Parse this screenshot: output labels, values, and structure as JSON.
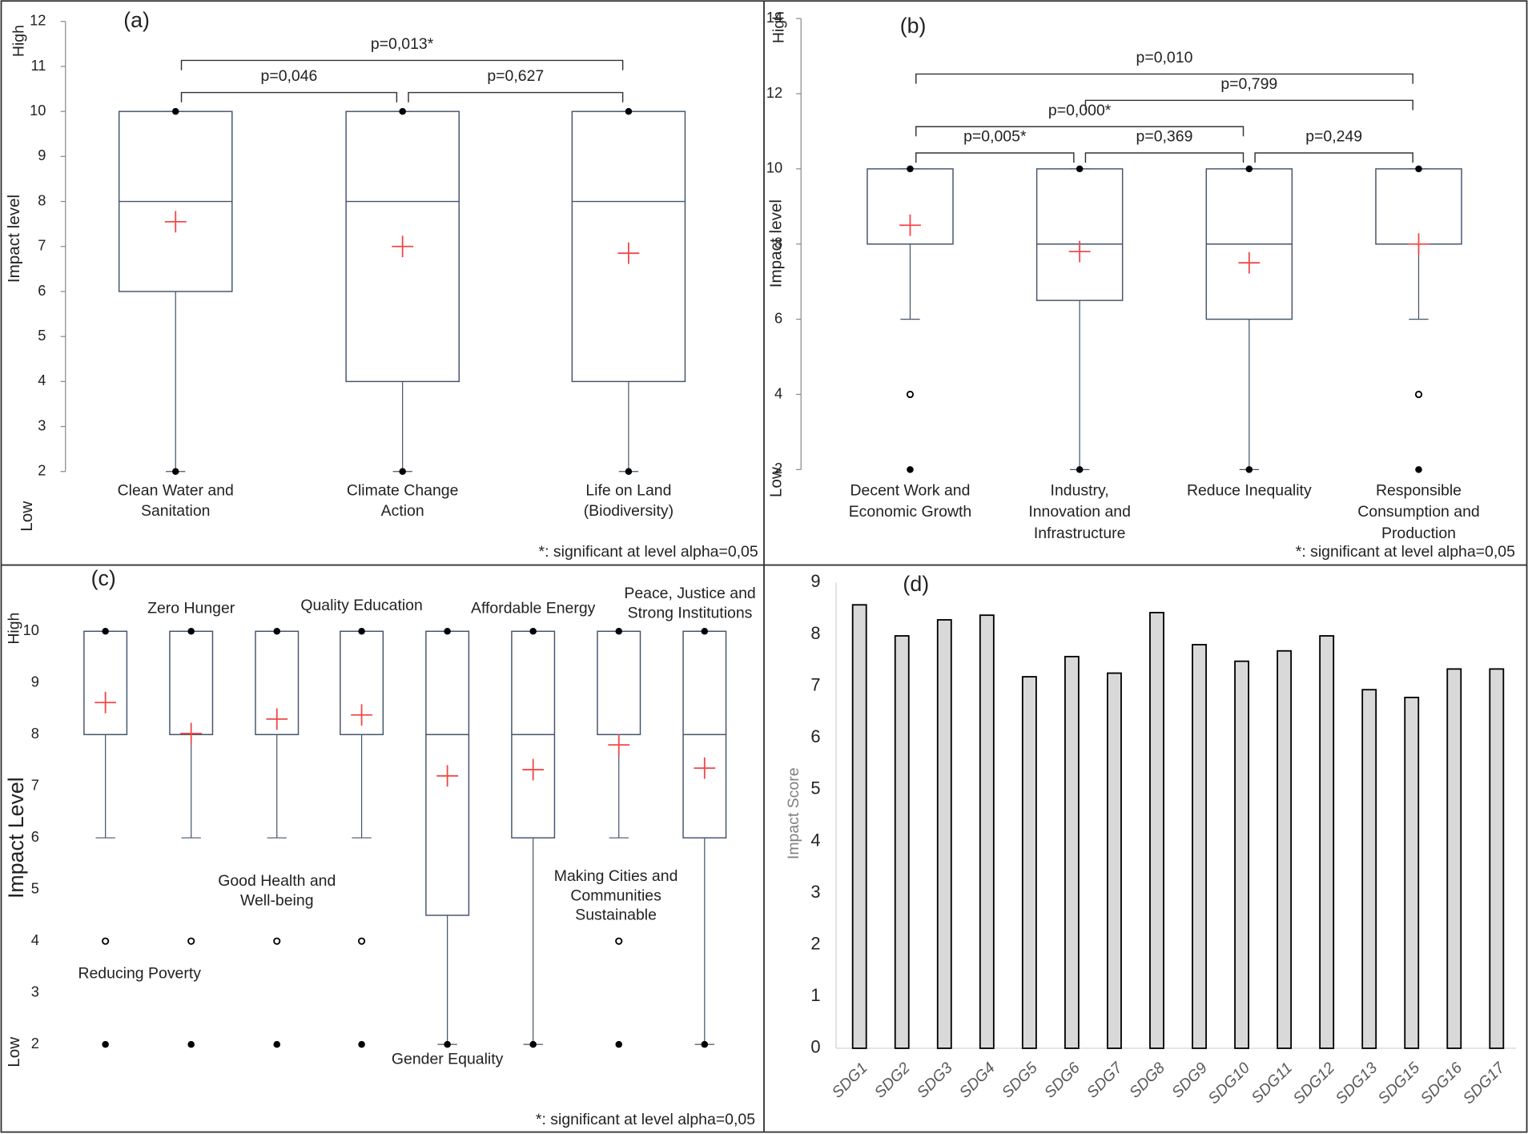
{
  "chart_data": [
    {
      "type": "box",
      "panel_label": "(a)",
      "y_label": "Impact level",
      "high_label": "High",
      "low_label": "Low",
      "note": "*: significant at level alpha=0,05",
      "box_color": "#44546a",
      "mean_color": "#f04848",
      "ylim": [
        2,
        12
      ],
      "yticks": [
        2,
        3,
        4,
        5,
        6,
        7,
        8,
        9,
        10,
        11,
        12
      ],
      "categories": [
        [
          "Clean Water and",
          "Sanitation"
        ],
        [
          "Climate Change",
          "Action"
        ],
        [
          "Life on Land",
          "(Biodiversity)"
        ]
      ],
      "boxes": [
        {
          "min": 2,
          "whisker_low": 2,
          "q1": 6,
          "median": 8,
          "q3": 10,
          "whisker_high": 10,
          "max": 10,
          "mean": 7.55,
          "outliers": []
        },
        {
          "min": 2,
          "whisker_low": 2,
          "q1": 4,
          "median": 8,
          "q3": 10,
          "whisker_high": 10,
          "max": 10,
          "mean": 7.0,
          "outliers": []
        },
        {
          "min": 2,
          "whisker_low": 2,
          "q1": 4,
          "median": 8,
          "q3": 10,
          "whisker_high": 10,
          "max": 10,
          "mean": 6.85,
          "outliers": []
        }
      ],
      "comparisons": [
        {
          "label": "p=0,046",
          "from": 0,
          "to": 1
        },
        {
          "label": "p=0,627",
          "from": 1,
          "to": 2
        },
        {
          "label": "p=0,013*",
          "from": 0,
          "to": 2
        }
      ]
    },
    {
      "type": "box",
      "panel_label": "(b)",
      "y_label": "Impact level",
      "high_label": "High",
      "low_label": "Low",
      "note": "*: significant at level alpha=0,05",
      "box_color": "#44546a",
      "mean_color": "#f04848",
      "ylim": [
        2,
        14
      ],
      "yticks": [
        2,
        4,
        6,
        8,
        10,
        12,
        14
      ],
      "categories": [
        [
          "Decent Work and",
          "Economic Growth"
        ],
        [
          "Industry,",
          "Innovation and",
          "Infrastructure"
        ],
        [
          "Reduce Inequality"
        ],
        [
          "Responsible",
          "Consumption and",
          "Production"
        ]
      ],
      "boxes": [
        {
          "min": 2,
          "whisker_low": 6,
          "q1": 8,
          "median": 8,
          "q3": 10,
          "whisker_high": 10,
          "max": 10,
          "mean": 8.5,
          "outliers": [
            4
          ]
        },
        {
          "min": 2,
          "whisker_low": 2,
          "q1": 6.5,
          "median": 8,
          "q3": 10,
          "whisker_high": 10,
          "max": 10,
          "mean": 7.8,
          "outliers": []
        },
        {
          "min": 2,
          "whisker_low": 2,
          "q1": 6,
          "median": 8,
          "q3": 10,
          "whisker_high": 10,
          "max": 10,
          "mean": 7.5,
          "outliers": []
        },
        {
          "min": 2,
          "whisker_low": 6,
          "q1": 8,
          "median": 8,
          "q3": 10,
          "whisker_high": 10,
          "max": 10,
          "mean": 8.0,
          "outliers": [
            4
          ]
        }
      ],
      "comparisons": [
        {
          "label": "p=0,005*",
          "from": 0,
          "to": 1
        },
        {
          "label": "p=0,369",
          "from": 1,
          "to": 2
        },
        {
          "label": "p=0,249",
          "from": 2,
          "to": 3
        },
        {
          "label": "p=0,000*",
          "from": 0,
          "to": 2
        },
        {
          "label": "p=0,799",
          "from": 1,
          "to": 3
        },
        {
          "label": "p=0,010",
          "from": 0,
          "to": 3
        }
      ]
    },
    {
      "type": "box",
      "panel_label": "(c)",
      "y_label": "Impact Level",
      "high_label": "High",
      "low_label": "Low",
      "note": "*: significant at level alpha=0,05",
      "box_color": "#44546a",
      "mean_color": "#f04848",
      "ylim": [
        2,
        10
      ],
      "yticks": [
        2,
        3,
        4,
        5,
        6,
        7,
        8,
        9,
        10
      ],
      "categories": [
        [
          "Reducing Poverty"
        ],
        [
          "Zero Hunger"
        ],
        [
          "Good Health and",
          "Well-being"
        ],
        [
          "Quality Education"
        ],
        [
          "Gender Equality"
        ],
        [
          "Affordable Energy"
        ],
        [
          "Making Cities and",
          "Communities",
          "Sustainable"
        ],
        [
          "Peace, Justice and",
          "Strong Institutions"
        ]
      ],
      "boxes": [
        {
          "min": 2,
          "whisker_low": 6,
          "q1": 8,
          "median": 8,
          "q3": 10,
          "whisker_high": 10,
          "max": 10,
          "mean": 8.62,
          "outliers": [
            4
          ]
        },
        {
          "min": 2,
          "whisker_low": 6,
          "q1": 8,
          "median": 8,
          "q3": 10,
          "whisker_high": 10,
          "max": 10,
          "mean": 8.02,
          "outliers": [
            4
          ]
        },
        {
          "min": 2,
          "whisker_low": 6,
          "q1": 8,
          "median": 8,
          "q3": 10,
          "whisker_high": 10,
          "max": 10,
          "mean": 8.3,
          "outliers": [
            4
          ]
        },
        {
          "min": 2,
          "whisker_low": 6,
          "q1": 8,
          "median": 8,
          "q3": 10,
          "whisker_high": 10,
          "max": 10,
          "mean": 8.38,
          "outliers": [
            4
          ]
        },
        {
          "min": 2,
          "whisker_low": 2,
          "q1": 4.5,
          "median": 8,
          "q3": 10,
          "whisker_high": 10,
          "max": 10,
          "mean": 7.2,
          "outliers": []
        },
        {
          "min": 2,
          "whisker_low": 2,
          "q1": 6,
          "median": 8,
          "q3": 10,
          "whisker_high": 10,
          "max": 10,
          "mean": 7.32,
          "outliers": []
        },
        {
          "min": 2,
          "whisker_low": 6,
          "q1": 8,
          "median": 8,
          "q3": 10,
          "whisker_high": 10,
          "max": 10,
          "mean": 7.8,
          "outliers": [
            4
          ]
        },
        {
          "min": 2,
          "whisker_low": 2,
          "q1": 6,
          "median": 8,
          "q3": 10,
          "whisker_high": 10,
          "max": 10,
          "mean": 7.35,
          "outliers": []
        }
      ],
      "comparisons": []
    },
    {
      "type": "bar",
      "panel_label": "(d)",
      "y_label": "Impact Score",
      "color": "#d9d9d9",
      "ylim": [
        0,
        9
      ],
      "yticks": [
        0,
        1,
        2,
        3,
        4,
        5,
        6,
        7,
        8,
        9
      ],
      "categories": [
        "SDG1",
        "SDG2",
        "SDG3",
        "SDG4",
        "SDG5",
        "SDG6",
        "SDG7",
        "SDG8",
        "SDG9",
        "SDG10",
        "SDG11",
        "SDG12",
        "SDG13",
        "SDG15",
        "SDG16",
        "SDG17"
      ],
      "values": [
        8.57,
        7.97,
        8.28,
        8.37,
        7.18,
        7.57,
        7.25,
        8.42,
        7.8,
        7.48,
        7.68,
        7.97,
        6.93,
        6.78,
        7.33,
        7.33
      ]
    }
  ]
}
